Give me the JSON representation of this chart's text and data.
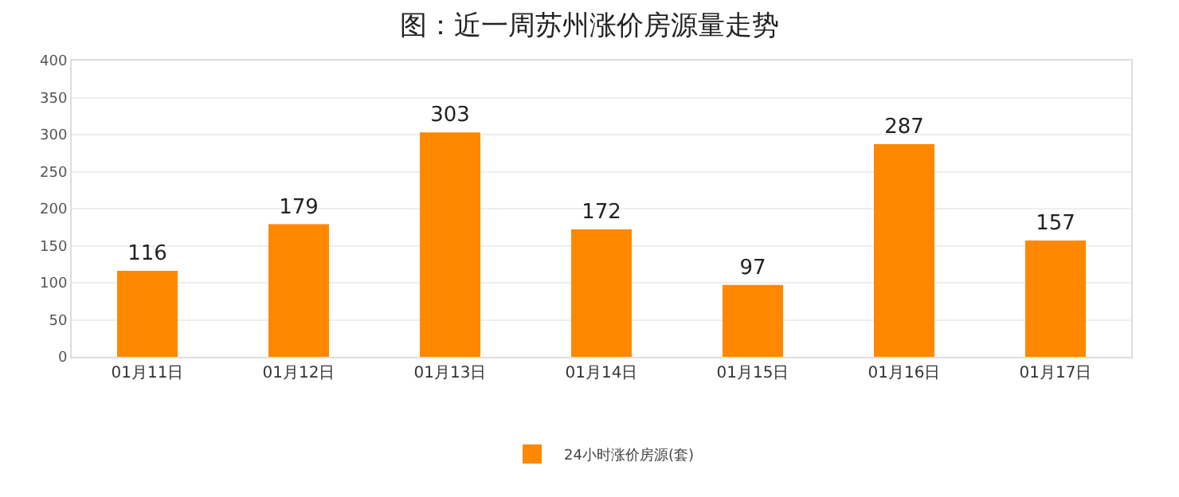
{
  "chart_data": {
    "type": "bar",
    "title": "图：近一周苏州涨价房源量走势",
    "categories": [
      "01月11日",
      "01月12日",
      "01月13日",
      "01月14日",
      "01月15日",
      "01月16日",
      "01月17日"
    ],
    "series": [
      {
        "name": "24小时涨价房源(套)",
        "color": "#ff8800",
        "values": [
          116,
          179,
          303,
          172,
          97,
          287,
          157
        ]
      }
    ],
    "ylim": [
      0,
      400
    ],
    "yticks": [
      0,
      50,
      100,
      150,
      200,
      250,
      300,
      350,
      400
    ],
    "grid": "y",
    "legend": "bottom",
    "data_labels": true
  }
}
